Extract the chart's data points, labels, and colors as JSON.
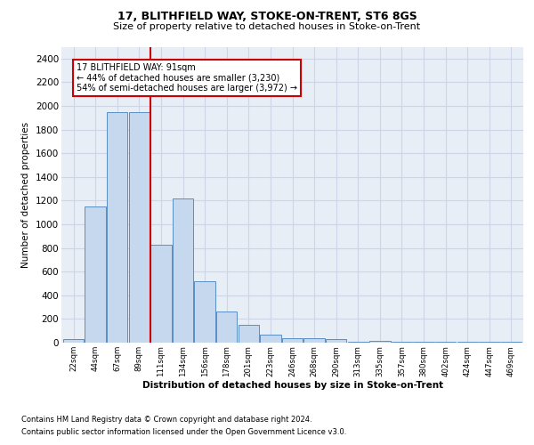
{
  "title": "17, BLITHFIELD WAY, STOKE-ON-TRENT, ST6 8GS",
  "subtitle": "Size of property relative to detached houses in Stoke-on-Trent",
  "xlabel": "Distribution of detached houses by size in Stoke-on-Trent",
  "ylabel": "Number of detached properties",
  "categories": [
    "22sqm",
    "44sqm",
    "67sqm",
    "89sqm",
    "111sqm",
    "134sqm",
    "156sqm",
    "178sqm",
    "201sqm",
    "223sqm",
    "246sqm",
    "268sqm",
    "290sqm",
    "313sqm",
    "335sqm",
    "357sqm",
    "380sqm",
    "402sqm",
    "424sqm",
    "447sqm",
    "469sqm"
  ],
  "values": [
    30,
    1150,
    1950,
    1950,
    830,
    1220,
    520,
    260,
    150,
    70,
    40,
    40,
    30,
    10,
    15,
    10,
    5,
    5,
    5,
    10,
    5
  ],
  "bar_color": "#c5d8ed",
  "bar_edge_color": "#5b8ec4",
  "red_line_index": 3,
  "annotation_line1": "17 BLITHFIELD WAY: 91sqm",
  "annotation_line2": "← 44% of detached houses are smaller (3,230)",
  "annotation_line3": "54% of semi-detached houses are larger (3,972) →",
  "ylim": [
    0,
    2500
  ],
  "yticks": [
    0,
    200,
    400,
    600,
    800,
    1000,
    1200,
    1400,
    1600,
    1800,
    2000,
    2200,
    2400
  ],
  "footnote1": "Contains HM Land Registry data © Crown copyright and database right 2024.",
  "footnote2": "Contains public sector information licensed under the Open Government Licence v3.0.",
  "grid_color": "#ccd6e8",
  "plot_bg_color": "#e8eef6",
  "annotation_box_edge": "#cc0000",
  "red_line_color": "#cc0000"
}
